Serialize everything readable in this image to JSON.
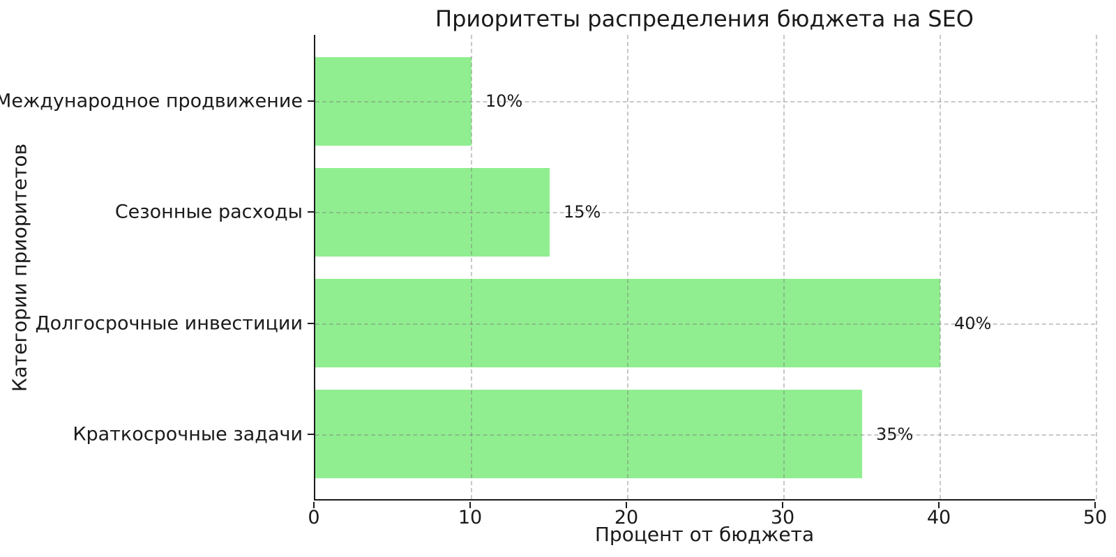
{
  "chart_data": {
    "type": "bar",
    "orientation": "horizontal",
    "title": "Приоритеты распределения бюджета на SEO",
    "xlabel": "Процент от бюджета",
    "ylabel": "Категории приоритетов",
    "categories": [
      "Международное продвижение",
      "Сезонные расходы",
      "Долгосрочные инвестиции",
      "Краткосрочные задачи"
    ],
    "values": [
      10,
      15,
      40,
      35
    ],
    "value_labels": [
      "10%",
      "15%",
      "40%",
      "35%"
    ],
    "xlim": [
      0,
      50
    ],
    "xticks": [
      0,
      10,
      20,
      30,
      40,
      50
    ],
    "bar_color": "#90EE90",
    "grid": true,
    "grid_style": "dashed",
    "legend": "none",
    "background": "#ffffff"
  }
}
